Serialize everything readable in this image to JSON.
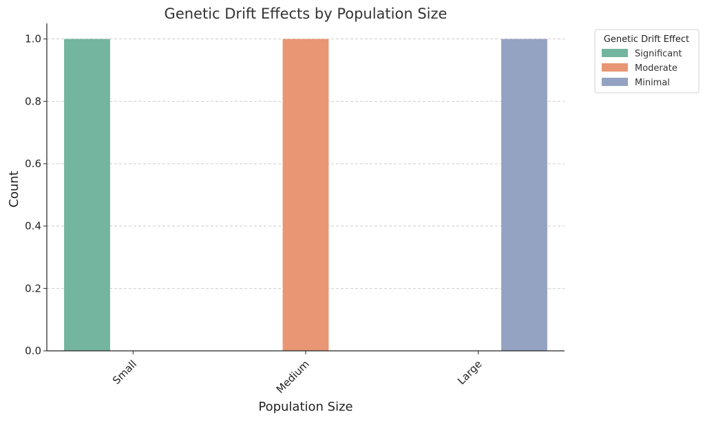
{
  "chart_data": {
    "type": "bar",
    "title": "Genetic Drift Effects by Population Size",
    "xlabel": "Population Size",
    "ylabel": "Count",
    "categories": [
      "Small",
      "Medium",
      "Large"
    ],
    "series": [
      {
        "name": "Significant",
        "values": [
          1,
          0,
          0
        ],
        "color": "#73b59f"
      },
      {
        "name": "Moderate",
        "values": [
          0,
          1,
          0
        ],
        "color": "#e89674"
      },
      {
        "name": "Minimal",
        "values": [
          0,
          0,
          1
        ],
        "color": "#95a3c2"
      }
    ],
    "ylim": [
      0,
      1.05
    ],
    "yticks": [
      "0.0",
      "0.2",
      "0.4",
      "0.6",
      "0.8",
      "1.0"
    ],
    "grid": true,
    "legend": {
      "title": "Genetic Drift Effect",
      "placement": "outside-top-right"
    }
  }
}
